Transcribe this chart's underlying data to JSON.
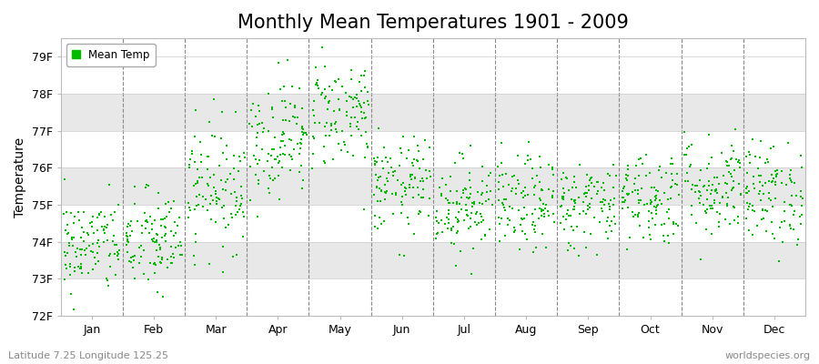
{
  "title": "Monthly Mean Temperatures 1901 - 2009",
  "ylabel": "Temperature",
  "xlabel": "",
  "footnote_left": "Latitude 7.25 Longitude 125.25",
  "footnote_right": "worldspecies.org",
  "ylim": [
    72.0,
    79.5
  ],
  "yticks": [
    72,
    73,
    74,
    75,
    76,
    77,
    78,
    79
  ],
  "ytick_labels": [
    "72F",
    "73F",
    "74F",
    "75F",
    "76F",
    "77F",
    "78F",
    "79F"
  ],
  "months": [
    "Jan",
    "Feb",
    "Mar",
    "Apr",
    "May",
    "Jun",
    "Jul",
    "Aug",
    "Sep",
    "Oct",
    "Nov",
    "Dec"
  ],
  "dot_color": "#00bb00",
  "dot_size": 3,
  "background_color": "#ffffff",
  "plot_bg_color": "#ffffff",
  "stripe_color": "#e8e8e8",
  "legend_label": "Mean Temp",
  "title_fontsize": 15,
  "axis_label_fontsize": 10,
  "tick_fontsize": 9,
  "num_years": 109,
  "seed": 42,
  "monthly_means": [
    73.9,
    74.0,
    75.5,
    76.8,
    77.5,
    75.5,
    75.0,
    75.0,
    75.0,
    75.2,
    75.5,
    75.3
  ],
  "monthly_stds": [
    0.65,
    0.7,
    0.85,
    0.8,
    0.75,
    0.65,
    0.65,
    0.65,
    0.6,
    0.65,
    0.7,
    0.7
  ]
}
